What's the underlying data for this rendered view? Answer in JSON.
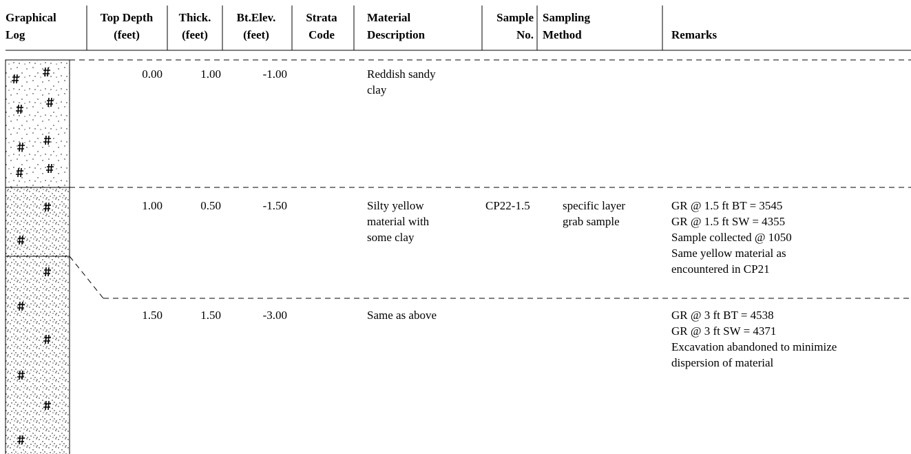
{
  "header": {
    "columns": [
      [
        "Graphical",
        "Log"
      ],
      [
        "Top Depth",
        "(feet)"
      ],
      [
        "Thick.",
        "(feet)"
      ],
      [
        "Bt.Elev.",
        "(feet)"
      ],
      [
        "Strata",
        "Code"
      ],
      [
        "Material",
        "Description"
      ],
      [
        "Sample",
        "No."
      ],
      [
        "Sampling",
        "Method"
      ],
      [
        "Remarks"
      ]
    ]
  },
  "rows": [
    {
      "top_depth": "0.00",
      "thickness": "1.00",
      "bt_elev": "-1.00",
      "material_description": [
        "Reddish sandy",
        "clay"
      ]
    },
    {
      "top_depth": "1.00",
      "thickness": "0.50",
      "bt_elev": "-1.50",
      "material_description": [
        "Silty yellow",
        "material with",
        "some clay"
      ],
      "sample_no": "CP22-1.5",
      "sampling_method": [
        "specific layer",
        "grab sample"
      ],
      "remarks": [
        "GR @ 1.5 ft BT = 3545",
        "GR @ 1.5 ft SW = 4355",
        "Sample collected @ 1050",
        "Same yellow material as",
        "encountered in CP21"
      ]
    },
    {
      "top_depth": "1.50",
      "thickness": "1.50",
      "bt_elev": "-3.00",
      "material_description": [
        "Same as above"
      ],
      "remarks": [
        "GR @ 3 ft BT = 4538",
        "GR @ 3 ft SW = 4371",
        "Excavation abandoned to minimize",
        "dispersion of material"
      ]
    }
  ]
}
